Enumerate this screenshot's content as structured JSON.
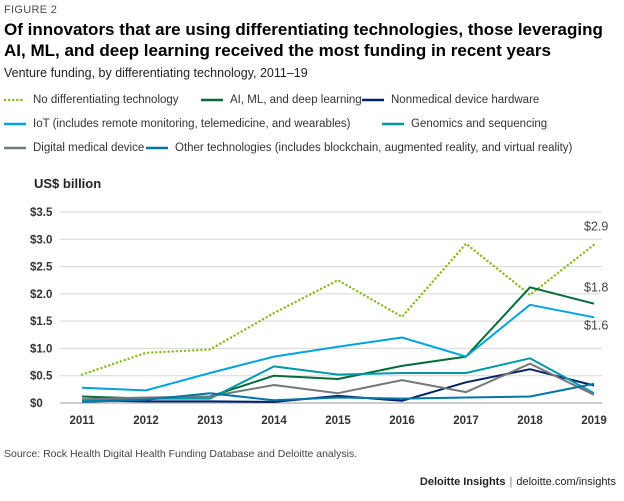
{
  "figure_label": "FIGURE 2",
  "title": "Of innovators that are using differentiating technologies, those leveraging AI, ML, and deep learning received the most funding in recent years",
  "subtitle": "Venture funding, by differentiating technology, 2011–19",
  "source": "Source: Rock Health Digital Health Funding Database and Deloitte analysis.",
  "footer": {
    "brand": "Deloitte Insights",
    "separator": "|",
    "url": "deloitte.com/insights"
  },
  "chart_data": {
    "type": "line",
    "ylabel": "US$ billion",
    "ylim": [
      0,
      3.5
    ],
    "yticks": [
      0,
      0.5,
      1.0,
      1.5,
      2.0,
      2.5,
      3.0,
      3.5
    ],
    "ytick_labels": [
      "$0",
      "$0.5",
      "$1.0",
      "$1.5",
      "$2.0",
      "$2.5",
      "$3.0",
      "$3.5"
    ],
    "x": [
      "2011",
      "2012",
      "2013",
      "2014",
      "2015",
      "2016",
      "2017",
      "2018",
      "2019"
    ],
    "grid": "horizontal",
    "series": [
      {
        "name": "No differentiating technology",
        "color": "#86bc25",
        "style": "dotted",
        "values": [
          0.52,
          0.92,
          0.98,
          1.65,
          2.25,
          1.58,
          2.92,
          1.98,
          2.9
        ]
      },
      {
        "name": "AI, ML, and deep learning",
        "color": "#046a38",
        "style": "solid",
        "values": [
          0.12,
          0.08,
          0.12,
          0.5,
          0.44,
          0.68,
          0.85,
          2.12,
          1.82
        ]
      },
      {
        "name": "Nonmedical device hardware",
        "color": "#012169",
        "style": "solid",
        "values": [
          0.05,
          0.03,
          0.03,
          0.02,
          0.13,
          0.04,
          0.38,
          0.62,
          0.32
        ]
      },
      {
        "name": "IoT (includes remote monitoring, telemedicine, and wearables)",
        "color": "#00a3e0",
        "style": "solid",
        "values": [
          0.28,
          0.23,
          0.55,
          0.85,
          1.03,
          1.2,
          0.85,
          1.8,
          1.57
        ]
      },
      {
        "name": "Genomics and sequencing",
        "color": "#0097a9",
        "style": "solid",
        "values": [
          0.05,
          0.08,
          0.08,
          0.67,
          0.52,
          0.55,
          0.55,
          0.82,
          0.18
        ]
      },
      {
        "name": "Digital medical device",
        "color": "#75787b",
        "style": "solid",
        "values": [
          0.07,
          0.1,
          0.12,
          0.33,
          0.18,
          0.42,
          0.2,
          0.72,
          0.15
        ]
      },
      {
        "name": "Other technologies (includes blockchain, augmented reality, and virtual reality)",
        "color": "#0076a8",
        "style": "solid",
        "values": [
          0.02,
          0.06,
          0.18,
          0.05,
          0.1,
          0.08,
          0.1,
          0.12,
          0.35
        ]
      }
    ],
    "annotations": [
      {
        "text": "$2.9",
        "series": 0,
        "x": "2019"
      },
      {
        "text": "$1.8",
        "series": 1,
        "x": "2019"
      },
      {
        "text": "$1.6",
        "series": 3,
        "x": "2019"
      }
    ]
  }
}
